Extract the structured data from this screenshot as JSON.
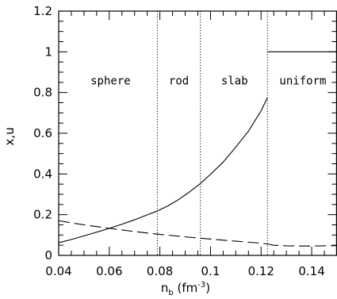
{
  "chart_data": {
    "type": "line",
    "xlabel": {
      "main": "n",
      "sub": "b",
      "unit_open": " (fm",
      "unit_sup": "-3",
      "unit_close": ")"
    },
    "ylabel": "x,u",
    "xlim": [
      0.04,
      0.15
    ],
    "ylim": [
      0,
      1.2
    ],
    "xticks": {
      "major": [
        0.04,
        0.06,
        0.08,
        0.1,
        0.12,
        0.14
      ],
      "labels": [
        "0.04",
        "0.06",
        "0.08",
        "0.1",
        "0.12",
        "0.14"
      ],
      "minor_step": 0.005
    },
    "yticks": {
      "major": [
        0,
        0.2,
        0.4,
        0.6,
        0.8,
        1.0,
        1.2
      ],
      "labels": [
        "0",
        "0.2",
        "0.4",
        "0.6",
        "0.8",
        "1",
        "1.2"
      ],
      "minor_step": 0.05
    },
    "phase_boundaries": [
      0.079,
      0.096,
      0.1225
    ],
    "regions": [
      {
        "label": "sphere",
        "x": 0.0605
      },
      {
        "label": "rod",
        "x": 0.0875
      },
      {
        "label": "slab",
        "x": 0.1095
      },
      {
        "label": "uniform",
        "x": 0.1365
      }
    ],
    "region_label_y": 0.86,
    "series": [
      {
        "style": "solid",
        "segments": [
          {
            "x": [
              0.04,
              0.045,
              0.05,
              0.055,
              0.06,
              0.065,
              0.07,
              0.075,
              0.079
            ],
            "y": [
              0.062,
              0.078,
              0.096,
              0.114,
              0.133,
              0.153,
              0.175,
              0.199,
              0.218
            ]
          },
          {
            "x": [
              0.079,
              0.083,
              0.087,
              0.091,
              0.096
            ],
            "y": [
              0.218,
              0.242,
              0.271,
              0.305,
              0.353
            ]
          },
          {
            "x": [
              0.096,
              0.1,
              0.105,
              0.11,
              0.115,
              0.12,
              0.1225
            ],
            "y": [
              0.353,
              0.398,
              0.458,
              0.532,
              0.61,
              0.71,
              0.775
            ]
          },
          {
            "x": [
              0.1225,
              0.15
            ],
            "y": [
              1.0,
              1.0
            ]
          }
        ]
      },
      {
        "style": "dashed",
        "segments": [
          {
            "x": [
              0.04,
              0.05,
              0.06,
              0.07,
              0.08,
              0.09,
              0.1,
              0.11,
              0.12,
              0.1225
            ],
            "y": [
              0.17,
              0.15,
              0.133,
              0.117,
              0.103,
              0.091,
              0.08,
              0.07,
              0.06,
              0.056
            ]
          },
          {
            "x": [
              0.1225,
              0.125,
              0.13,
              0.135,
              0.14,
              0.145,
              0.15
            ],
            "y": [
              0.056,
              0.05,
              0.047,
              0.046,
              0.046,
              0.047,
              0.048
            ]
          }
        ]
      }
    ]
  }
}
